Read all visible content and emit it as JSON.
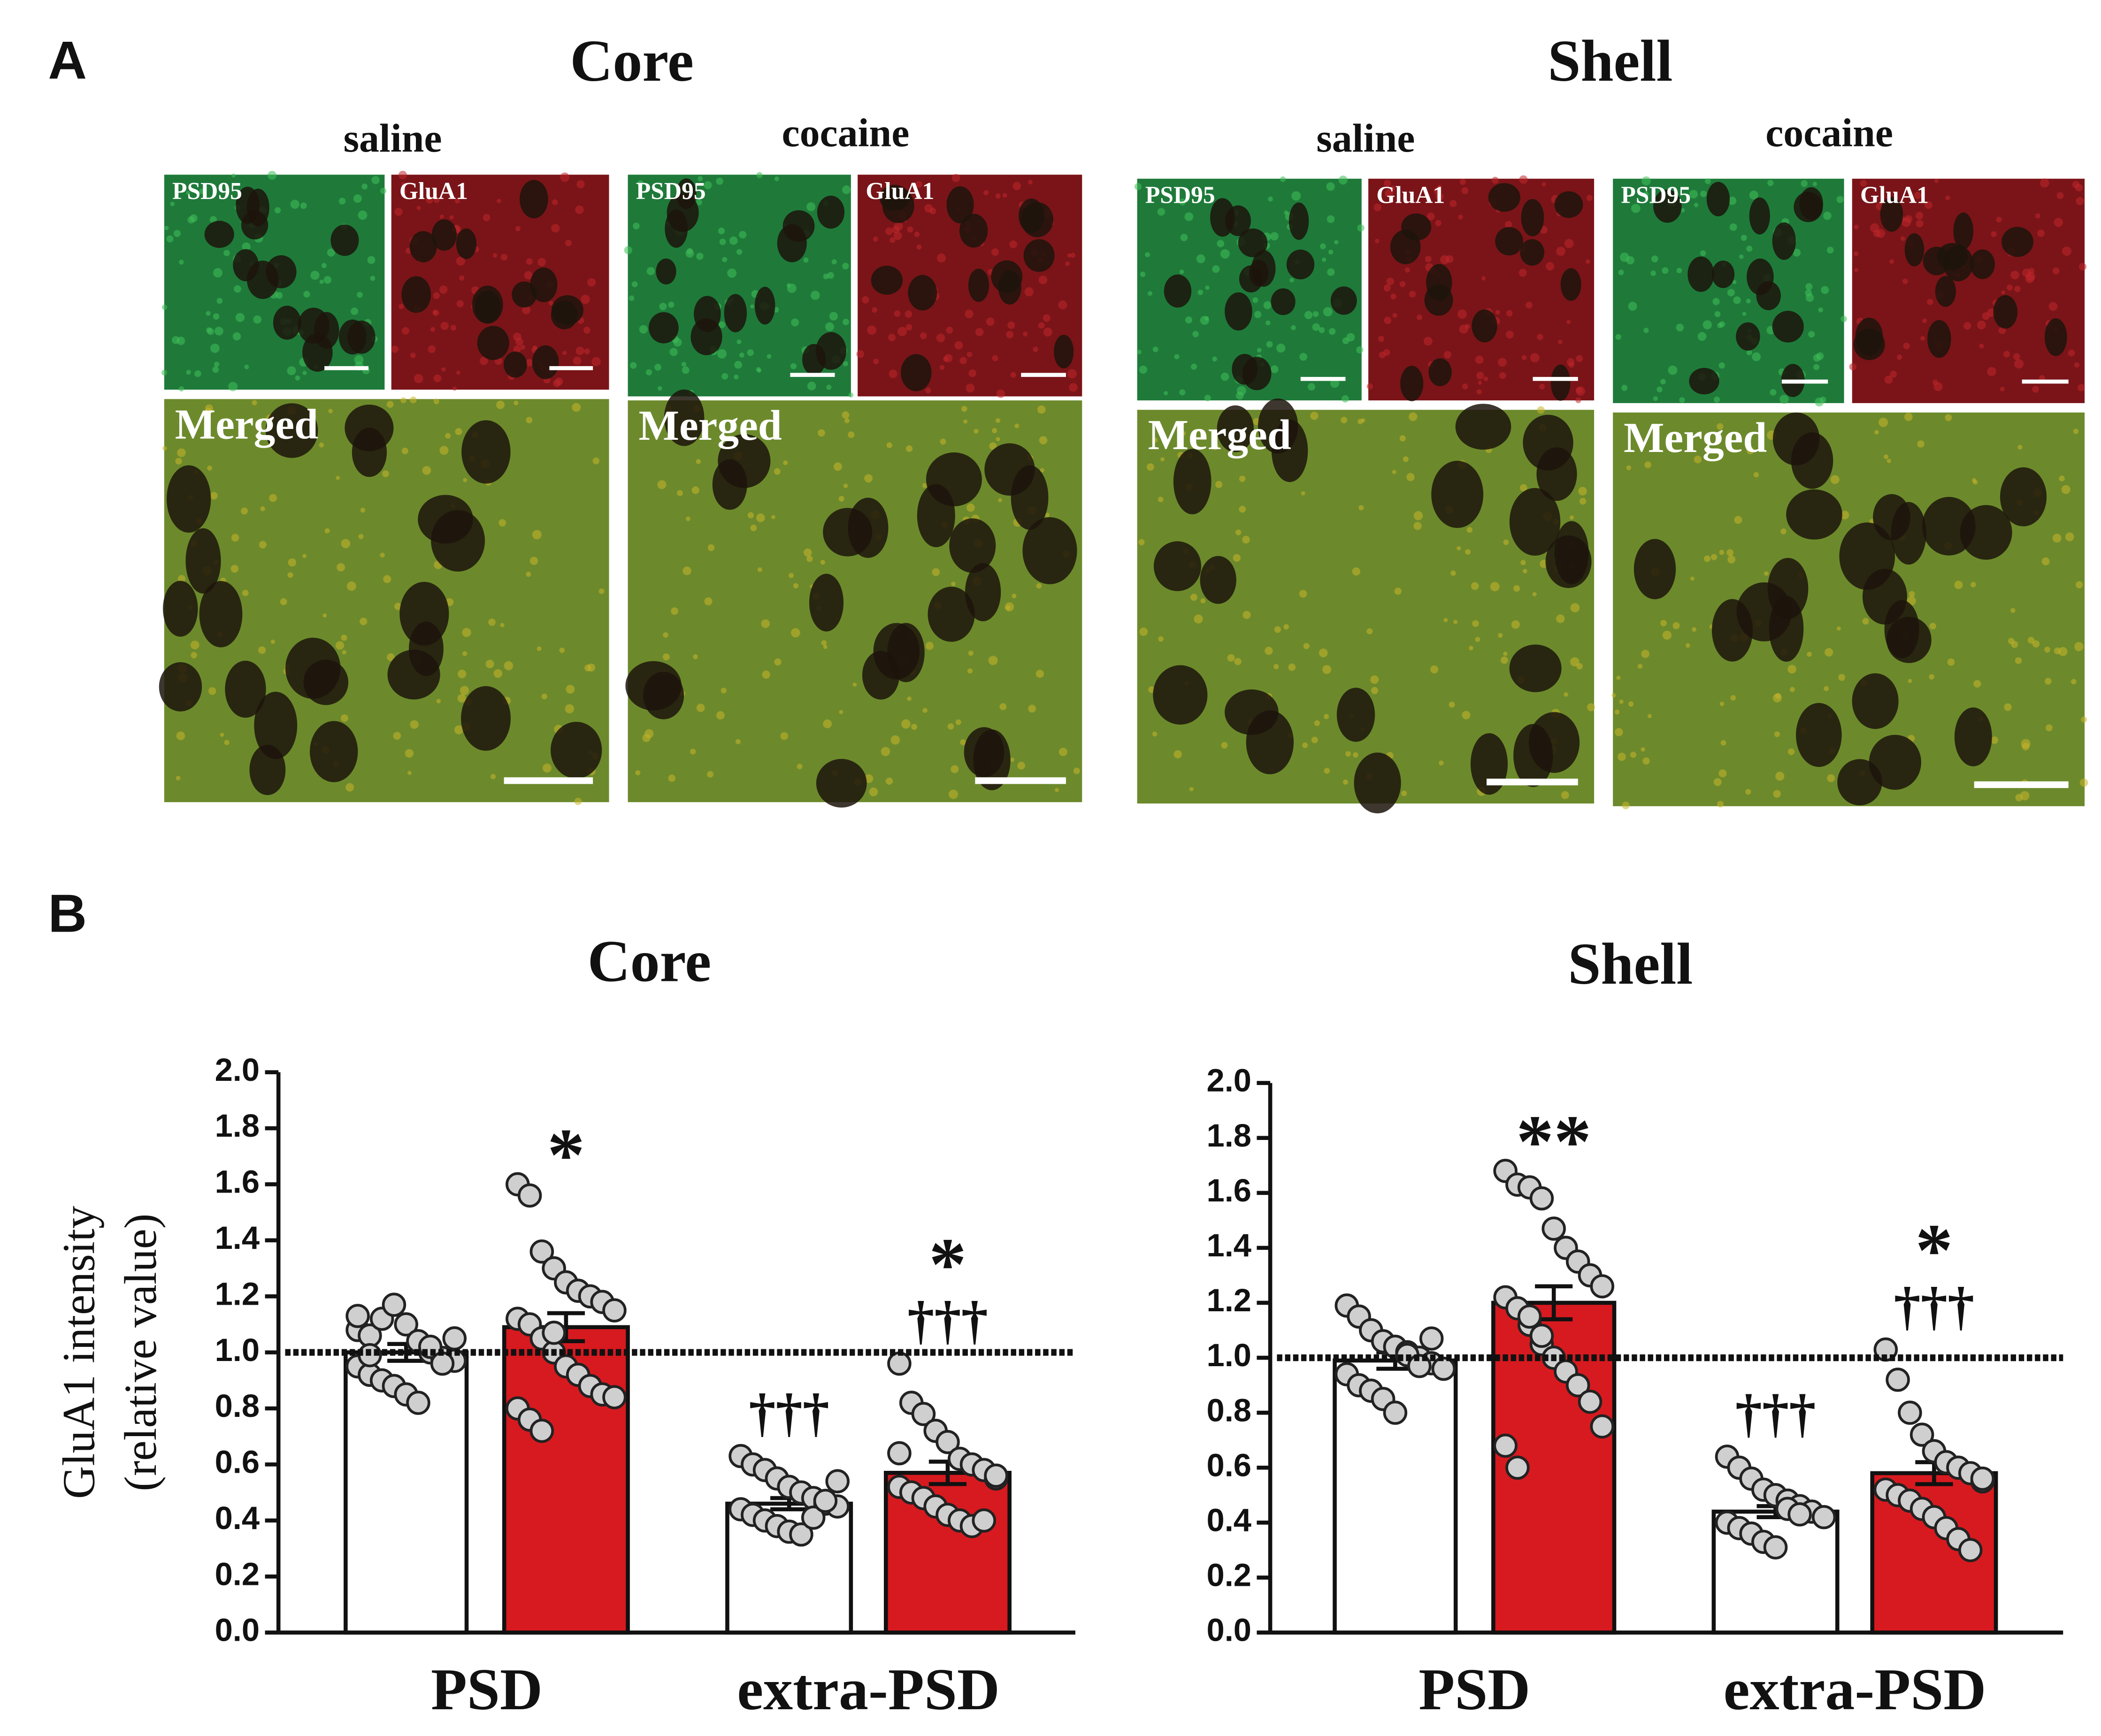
{
  "panel_a": {
    "label": "A",
    "groups": [
      {
        "title": "Core",
        "conditions": [
          {
            "name": "saline",
            "channels": [
              "PSD95",
              "GluA1"
            ],
            "merged": "Merged"
          },
          {
            "name": "cocaine",
            "channels": [
              "PSD95",
              "GluA1"
            ],
            "merged": "Merged"
          }
        ]
      },
      {
        "title": "Shell",
        "conditions": [
          {
            "name": "saline",
            "channels": [
              "PSD95",
              "GluA1"
            ],
            "merged": "Merged"
          },
          {
            "name": "cocaine",
            "channels": [
              "PSD95",
              "GluA1"
            ],
            "merged": "Merged"
          }
        ]
      }
    ]
  },
  "panel_b": {
    "label": "B"
  },
  "chart_data": [
    {
      "type": "bar",
      "title": "Core",
      "ylabel": [
        "GluA1 intensity",
        "(relative value)"
      ],
      "categories": [
        "PSD",
        "extra-PSD"
      ],
      "series": [
        {
          "color": "#ffffff",
          "values": [
            1.0,
            0.46
          ],
          "errors": [
            0.03,
            0.02
          ],
          "annotations": [
            [],
            [
              "†††"
            ]
          ],
          "points": [
            [
              1.08,
              1.06,
              1.12,
              1.17,
              1.1,
              1.04,
              1.0,
              0.98,
              0.97,
              0.95,
              0.92,
              0.9,
              0.88,
              0.85,
              0.82,
              1.02,
              0.96,
              1.05,
              1.13,
              0.99
            ],
            [
              0.63,
              0.6,
              0.58,
              0.55,
              0.52,
              0.5,
              0.48,
              0.46,
              0.45,
              0.44,
              0.42,
              0.4,
              0.38,
              0.36,
              0.35,
              0.41,
              0.47,
              0.54
            ]
          ]
        },
        {
          "color": "#d71a1f",
          "values": [
            1.09,
            0.57
          ],
          "errors": [
            0.05,
            0.04
          ],
          "annotations": [
            [
              "*"
            ],
            [
              "*",
              "†††"
            ]
          ],
          "points": [
            [
              1.6,
              1.56,
              1.36,
              1.3,
              1.25,
              1.22,
              1.2,
              1.18,
              1.15,
              1.12,
              1.1,
              1.05,
              1.0,
              0.95,
              0.92,
              0.88,
              0.85,
              0.84,
              0.8,
              0.76,
              0.72,
              1.07
            ],
            [
              0.96,
              0.82,
              0.78,
              0.72,
              0.68,
              0.62,
              0.6,
              0.58,
              0.55,
              0.52,
              0.5,
              0.48,
              0.45,
              0.42,
              0.4,
              0.38,
              0.4,
              0.56,
              0.64
            ]
          ]
        }
      ],
      "reference_line": 1.0,
      "ylim": [
        0,
        2.0
      ],
      "yticks": [
        {
          "value": 0,
          "label": "0.0"
        },
        0.2,
        0.4,
        0.6,
        0.8,
        {
          "value": 1,
          "label": "1.0"
        },
        1.2,
        1.4,
        1.6,
        1.8,
        {
          "value": 2,
          "label": "2.0"
        }
      ]
    },
    {
      "type": "bar",
      "title": "Shell",
      "categories": [
        "PSD",
        "extra-PSD"
      ],
      "series": [
        {
          "color": "#ffffff",
          "values": [
            0.99,
            0.44
          ],
          "errors": [
            0.03,
            0.02
          ],
          "annotations": [
            [],
            [
              "†††"
            ]
          ],
          "points": [
            [
              1.19,
              1.15,
              1.1,
              1.06,
              1.04,
              1.02,
              1.0,
              0.98,
              0.96,
              0.94,
              0.9,
              0.88,
              0.85,
              0.8,
              1.01,
              0.97,
              1.07
            ],
            [
              0.64,
              0.6,
              0.56,
              0.52,
              0.5,
              0.48,
              0.46,
              0.44,
              0.42,
              0.4,
              0.38,
              0.36,
              0.33,
              0.31,
              0.45,
              0.43
            ]
          ]
        },
        {
          "color": "#d71a1f",
          "values": [
            1.2,
            0.58
          ],
          "errors": [
            0.06,
            0.04
          ],
          "annotations": [
            [
              "**"
            ],
            [
              "*",
              "†††"
            ]
          ],
          "points": [
            [
              1.68,
              1.63,
              1.62,
              1.58,
              1.47,
              1.4,
              1.35,
              1.3,
              1.26,
              1.22,
              1.18,
              1.12,
              1.05,
              1.0,
              0.95,
              0.9,
              0.84,
              0.75,
              0.68,
              0.6,
              1.15,
              1.08
            ],
            [
              1.03,
              0.92,
              0.8,
              0.72,
              0.66,
              0.62,
              0.6,
              0.58,
              0.55,
              0.52,
              0.5,
              0.48,
              0.45,
              0.42,
              0.38,
              0.34,
              0.3,
              0.56
            ]
          ]
        }
      ],
      "reference_line": 1.0,
      "ylim": [
        0,
        2.0
      ],
      "yticks": [
        {
          "value": 0,
          "label": "0.0"
        },
        0.2,
        0.4,
        0.6,
        0.8,
        {
          "value": 1,
          "label": "1.0"
        },
        1.2,
        1.4,
        1.6,
        1.8,
        {
          "value": 2,
          "label": "2.0"
        }
      ]
    }
  ]
}
